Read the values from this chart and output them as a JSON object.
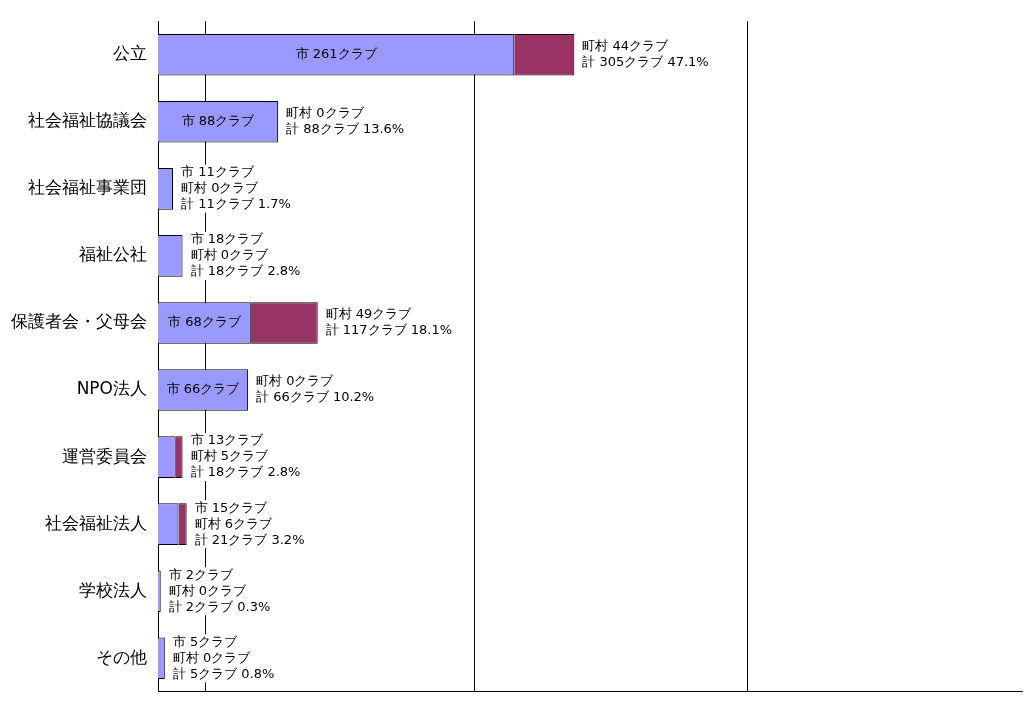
{
  "chart_data": {
    "type": "bar",
    "orientation": "horizontal",
    "stacked": true,
    "categories": [
      "公立",
      "社会福祉協議会",
      "社会福祉事業団",
      "福祉公社",
      "保護者会・父母会",
      "NPO法人",
      "運営委員会",
      "社会福祉法人",
      "学校法人",
      "その他"
    ],
    "series": [
      {
        "color": "#9999ff",
        "values": [
          261,
          88,
          11,
          18,
          68,
          66,
          13,
          15,
          2,
          5
        ],
        "value_labels": [
          "市 261クラブ",
          "市 88クラブ",
          "市 11クラブ",
          "市 18クラブ",
          "市 68クラブ",
          "市 66クラブ",
          "市 13クラブ",
          "市 15クラブ",
          "市 2クラブ",
          "市 5クラブ"
        ]
      },
      {
        "color": "#993366",
        "values": [
          44,
          0,
          0,
          0,
          49,
          0,
          5,
          6,
          0,
          0
        ],
        "value_labels": [
          "町村 44クラブ",
          "町村 0クラブ",
          "町村 0クラブ",
          "町村 0クラブ",
          "町村 49クラブ",
          "町村 0クラブ",
          "町村 5クラブ",
          "町村 6クラブ",
          "町村 0クラブ",
          "町村 0クラブ"
        ]
      }
    ],
    "totals": [
      "計 305クラブ 47.1%",
      "計 88クラブ 13.6%",
      "計 11クラブ 1.7%",
      "計 18クラブ 2.8%",
      "計 117クラブ 18.1%",
      "計 66クラブ 10.2%",
      "計 18クラブ 2.8%",
      "計 21クラブ 3.2%",
      "計 2クラブ 0.3%",
      "計 5クラブ 0.8%"
    ],
    "xlim": [
      0,
      633
    ],
    "xticks": [
      {
        "value": 35,
        "label": null
      },
      {
        "value": 232,
        "label": null
      },
      {
        "value": 432,
        "label": null
      }
    ],
    "grid": "x",
    "tick_labels": "y",
    "legend": false
  }
}
